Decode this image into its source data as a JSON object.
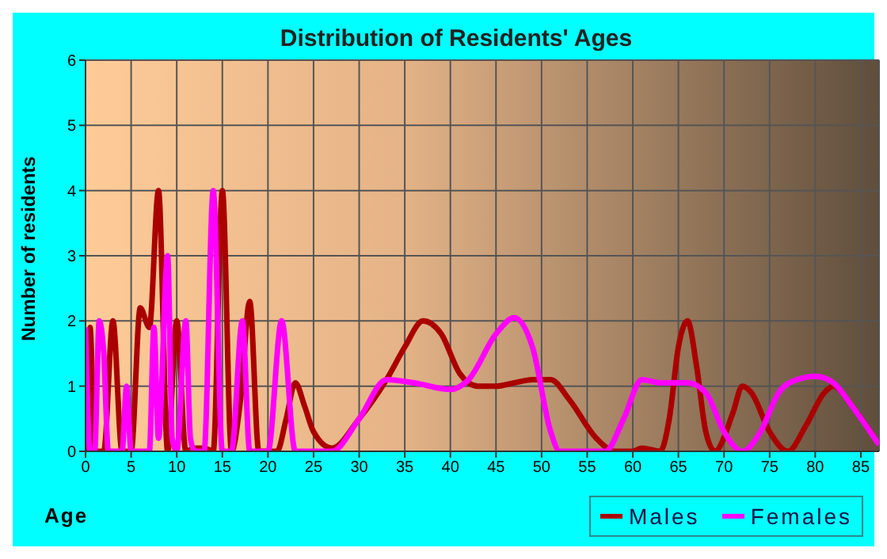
{
  "chart_data": {
    "type": "line",
    "title": "Distribution of Residents' Ages",
    "xlabel": "Age",
    "ylabel": "Number of residents",
    "xlim": [
      0,
      87
    ],
    "xticks": [
      0,
      5,
      10,
      15,
      20,
      25,
      30,
      35,
      40,
      45,
      50,
      55,
      60,
      65,
      70,
      75,
      80,
      85
    ],
    "ylim": [
      0,
      6
    ],
    "yticks": [
      0,
      1,
      2,
      3,
      4,
      5,
      6
    ],
    "grid": true,
    "legend": "bottom right",
    "marker": "none",
    "line_style": "solid",
    "series": [
      {
        "name": "Males",
        "color": "#aa0000",
        "x": [
          0,
          0.5,
          1,
          2,
          3,
          4,
          5,
          6,
          7,
          8,
          9,
          10,
          11,
          12,
          13,
          14,
          15,
          16,
          17,
          18,
          19,
          20,
          21,
          22,
          23,
          24,
          25,
          27,
          30,
          33,
          35,
          37,
          39,
          41,
          43,
          45,
          47,
          49,
          51,
          53,
          56,
          58,
          60,
          61,
          63,
          64,
          65,
          66,
          67,
          68,
          69,
          71,
          72,
          73,
          75,
          77,
          79,
          81,
          82,
          84,
          87
        ],
        "values": [
          0,
          1.9,
          0,
          0,
          2,
          0,
          0,
          2.2,
          1.9,
          4,
          0,
          2,
          0,
          0.05,
          0.05,
          0,
          4,
          0,
          0.8,
          2.3,
          0,
          0,
          0,
          0.5,
          1.05,
          0.7,
          0.3,
          0.05,
          0.5,
          1.1,
          1.6,
          2,
          1.8,
          1.2,
          1,
          1,
          1.05,
          1.1,
          1.1,
          0.8,
          0.2,
          0,
          0,
          0.05,
          0,
          0.5,
          1.6,
          2,
          1.3,
          0.3,
          0,
          0.6,
          1,
          0.9,
          0.3,
          0,
          0.4,
          0.9,
          1,
          0.7,
          0.1
        ]
      },
      {
        "name": "Females",
        "color": "#ff00ff",
        "x": [
          0,
          0.5,
          1,
          1.5,
          2,
          2.5,
          4,
          4.5,
          5,
          7,
          7.5,
          8,
          9,
          9.5,
          10,
          11,
          11.5,
          12,
          13,
          14,
          15,
          16,
          17.2,
          18,
          19,
          20,
          21.5,
          23,
          27,
          30,
          33,
          36,
          40,
          42,
          45,
          47,
          49,
          51,
          52,
          57,
          59,
          61,
          63,
          66,
          68,
          70,
          72,
          74,
          76,
          78,
          80,
          82,
          84,
          87
        ],
        "values": [
          1.9,
          0,
          0,
          2,
          1.5,
          0,
          0,
          1,
          0,
          0,
          1.9,
          0.2,
          3,
          0.2,
          0,
          2,
          0.2,
          0,
          0,
          4,
          0,
          0,
          2,
          0,
          0,
          0,
          2,
          0,
          0,
          0.5,
          1.1,
          1.05,
          0.95,
          1.1,
          1.8,
          2.05,
          1.6,
          0.3,
          0,
          0,
          0.5,
          1.1,
          1.05,
          1.05,
          0.9,
          0.3,
          0,
          0.3,
          0.9,
          1.1,
          1.15,
          1.05,
          0.7,
          0.1
        ]
      }
    ]
  }
}
